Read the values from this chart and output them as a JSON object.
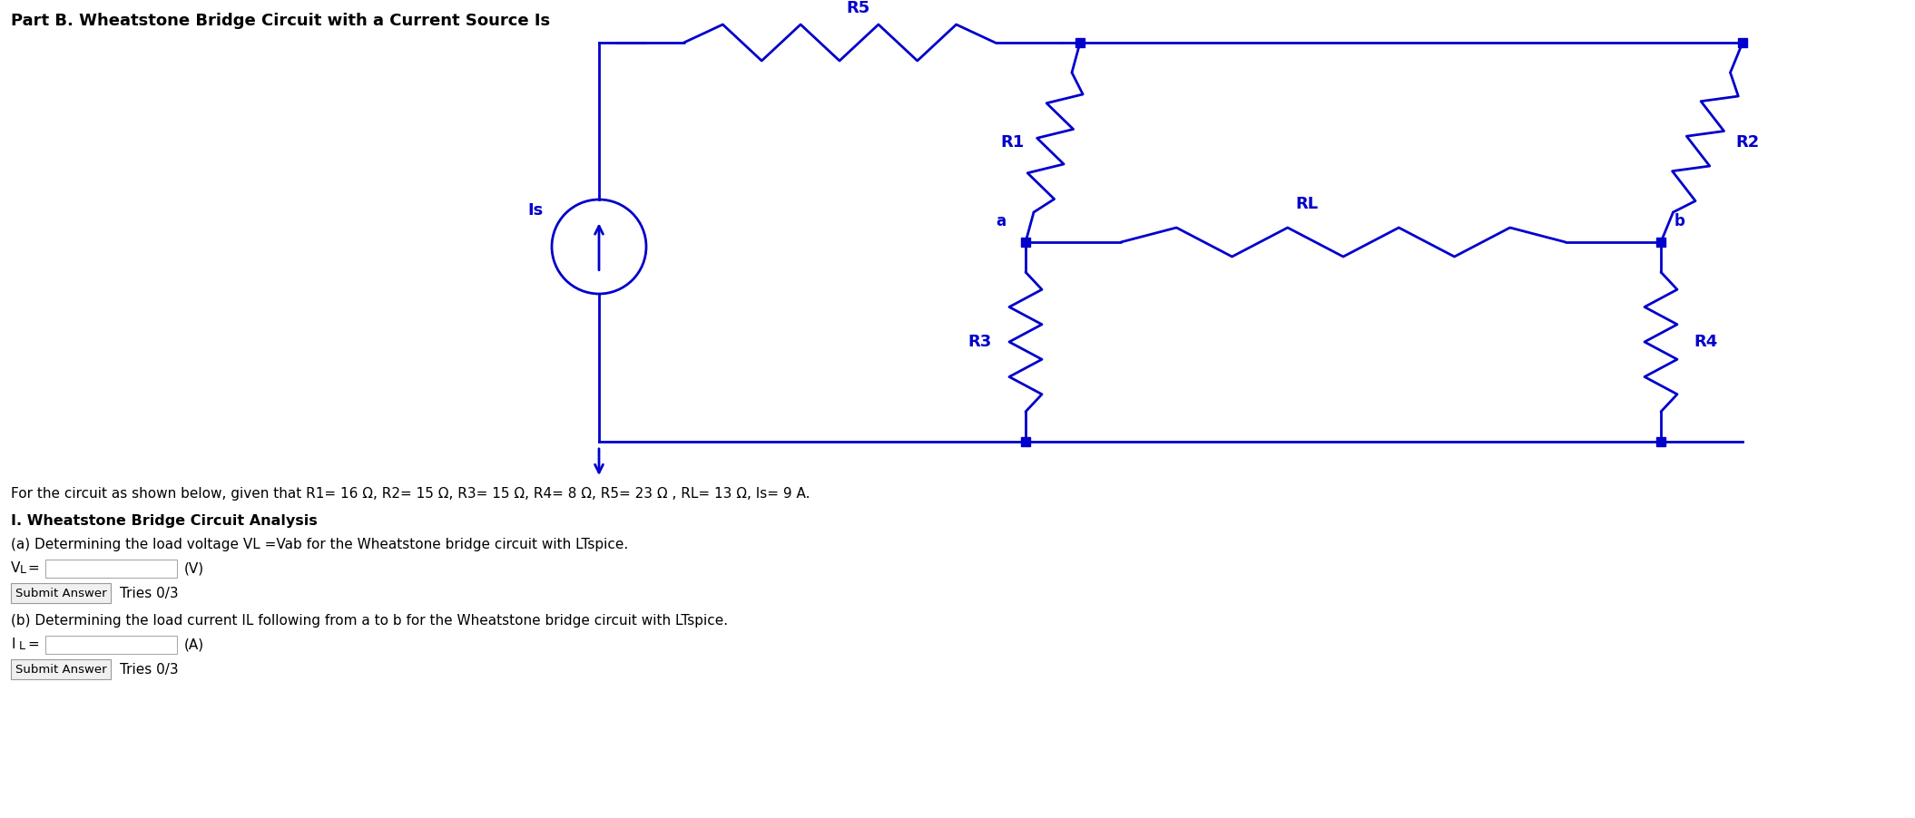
{
  "title": "Part B. Wheatstone Bridge Circuit with a Current Source Is",
  "circuit_color": "#0000CC",
  "text_color": "#000000",
  "bg_color": "#ffffff",
  "desc_line": "For the circuit as shown below, given that R1= 16 Ω, R2= 15 Ω, R3= 15 Ω, R4= 8 Ω, R5= 23 Ω , RL= 13 Ω, Is= 9 A.",
  "section_title": "I. Wheatstone Bridge Circuit Analysis",
  "part_a_text": "(a) Determining the load voltage VL =Vab for the Wheatstone bridge circuit with LTspice.",
  "part_a_var": "VL=",
  "part_a_unit": "(V)",
  "part_b_text": "(b) Determining the load current IL following from a to b for the Wheatstone bridge circuit with LTspice.",
  "part_b_var": "IL=",
  "part_b_unit": "(A)",
  "submit_text": "Submit Answer",
  "tries_text": "Tries 0/3"
}
